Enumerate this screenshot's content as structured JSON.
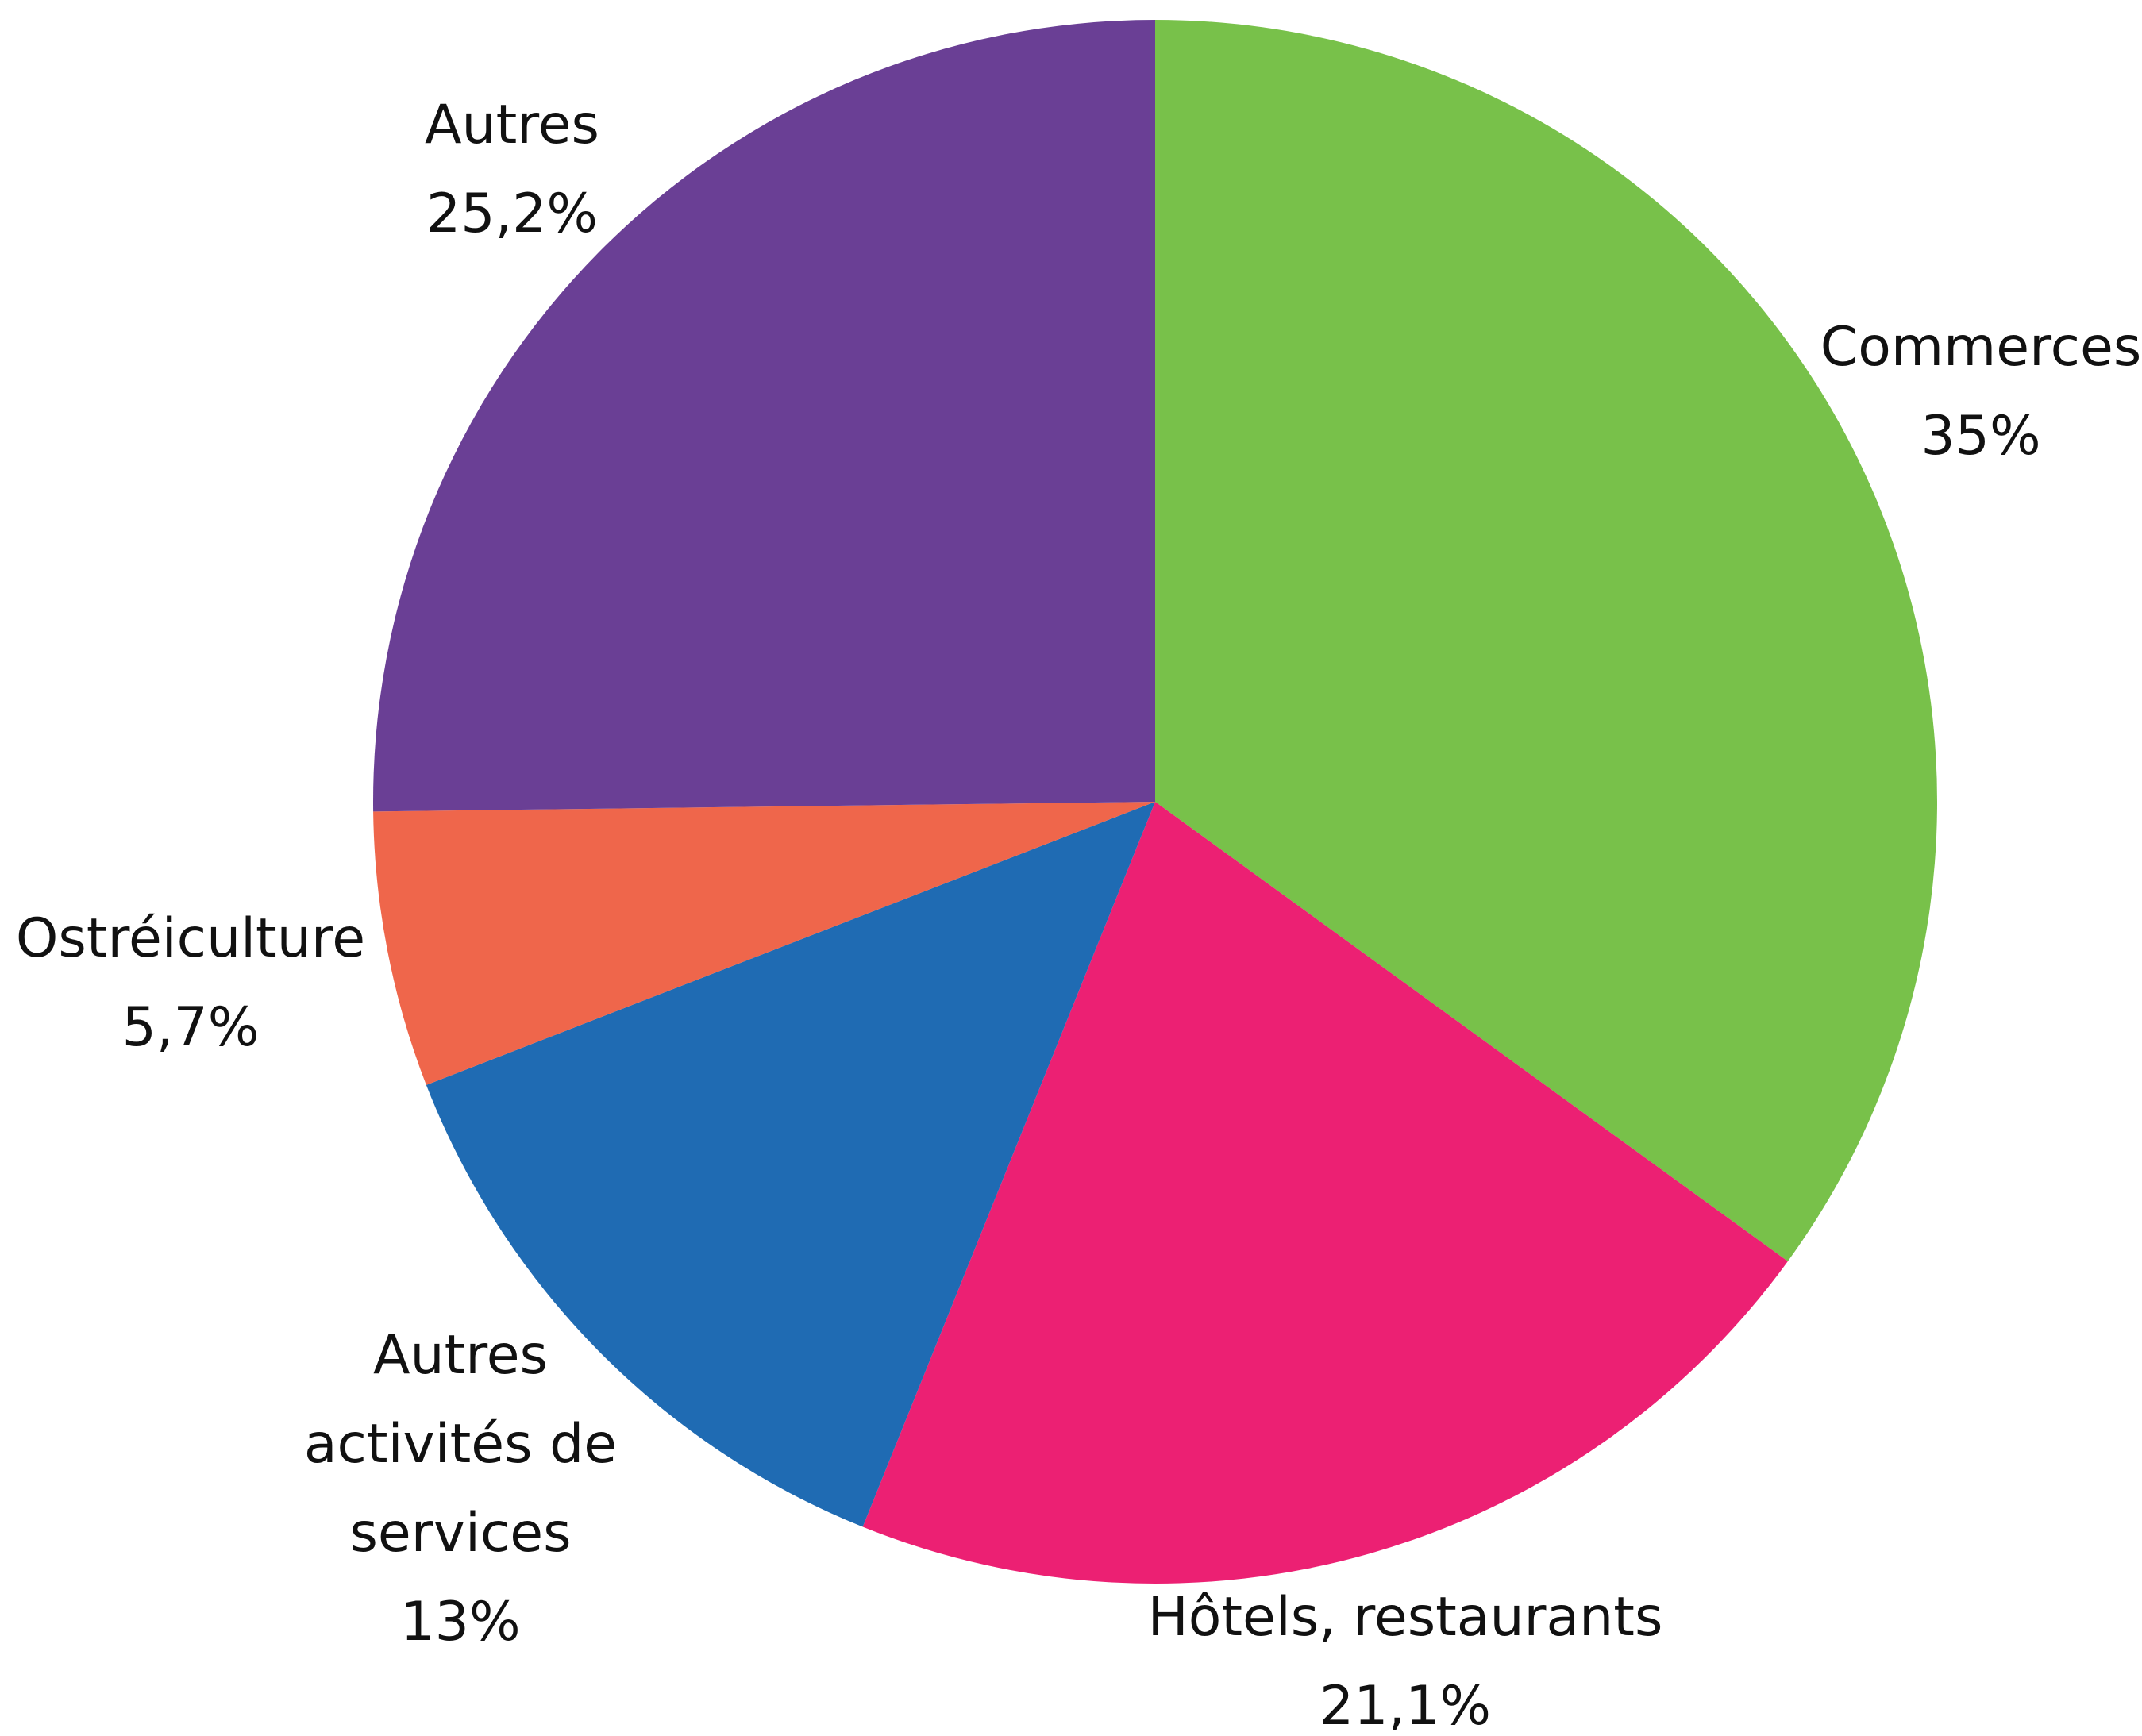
{
  "chart_data": {
    "type": "pie",
    "slices": [
      {
        "label": [
          "Commerces"
        ],
        "value_text": "35%",
        "value": 35.0,
        "color": "#78c14a"
      },
      {
        "label": [
          "Hôtels, restaurants"
        ],
        "value_text": "21,1%",
        "value": 21.1,
        "color": "#ec2073"
      },
      {
        "label": [
          "Autres",
          "activités de",
          "services"
        ],
        "value_text": "13%",
        "value": 13.0,
        "color": "#1f6bb3"
      },
      {
        "label": [
          "Ostréiculture"
        ],
        "value_text": "5,7%",
        "value": 5.7,
        "color": "#ef664b"
      },
      {
        "label": [
          "Autres"
        ],
        "value_text": "25,2%",
        "value": 25.2,
        "color": "#6a3f95"
      }
    ],
    "start_angle_deg": 0,
    "direction": "clockwise",
    "title": "",
    "legend": "none"
  }
}
